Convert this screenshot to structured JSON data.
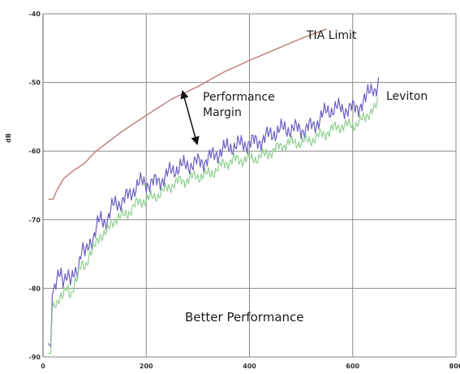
{
  "chart_data": {
    "type": "line",
    "ylabel": "dB",
    "xlim": [
      0,
      800
    ],
    "ylim": [
      -90,
      -40
    ],
    "x_ticks": [
      "0",
      "200",
      "400",
      "600",
      "800"
    ],
    "y_ticks": [
      "-40",
      "-50",
      "-60",
      "-70",
      "-80",
      "-90"
    ],
    "grid": true,
    "series": [
      {
        "name": "TIA Limit",
        "color": "#c07a78",
        "points": [
          [
            10,
            -67
          ],
          [
            20,
            -67
          ],
          [
            25,
            -66
          ],
          [
            40,
            -64
          ],
          [
            60,
            -62.8
          ],
          [
            80,
            -61.8
          ],
          [
            100,
            -60.2
          ],
          [
            150,
            -57.3
          ],
          [
            200,
            -54.8
          ],
          [
            250,
            -52.4
          ],
          [
            300,
            -50.6
          ],
          [
            350,
            -48.5
          ],
          [
            400,
            -46.8
          ],
          [
            450,
            -45.2
          ],
          [
            500,
            -43.6
          ],
          [
            550,
            -42.2
          ]
        ]
      },
      {
        "name": "Leviton",
        "color": "#6a5fc4",
        "points": [
          [
            10,
            -88
          ],
          [
            15,
            -88.5
          ],
          [
            18,
            -81
          ],
          [
            25,
            -79.5
          ],
          [
            35,
            -77.5
          ],
          [
            45,
            -78.5
          ],
          [
            55,
            -79
          ],
          [
            65,
            -77
          ],
          [
            75,
            -75
          ],
          [
            85,
            -74.5
          ],
          [
            95,
            -72.5
          ],
          [
            110,
            -70.5
          ],
          [
            125,
            -69.5
          ],
          [
            140,
            -68
          ],
          [
            160,
            -66.5
          ],
          [
            180,
            -65.5
          ],
          [
            200,
            -64.5
          ],
          [
            225,
            -64
          ],
          [
            250,
            -63
          ],
          [
            275,
            -62.5
          ],
          [
            300,
            -61.5
          ],
          [
            325,
            -60.5
          ],
          [
            350,
            -60
          ],
          [
            375,
            -59.5
          ],
          [
            400,
            -58.5
          ],
          [
            425,
            -58
          ],
          [
            450,
            -57.5
          ],
          [
            475,
            -57
          ],
          [
            500,
            -56.5
          ],
          [
            525,
            -56
          ],
          [
            550,
            -54.5
          ],
          [
            575,
            -54
          ],
          [
            600,
            -53.5
          ],
          [
            625,
            -52.5
          ],
          [
            640,
            -50.5
          ],
          [
            650,
            -51
          ]
        ]
      },
      {
        "name": "",
        "color": "#8fd08f",
        "points": [
          [
            10,
            -89.5
          ],
          [
            15,
            -89.5
          ],
          [
            18,
            -83
          ],
          [
            25,
            -82
          ],
          [
            35,
            -81
          ],
          [
            45,
            -80.5
          ],
          [
            55,
            -80.5
          ],
          [
            65,
            -78.5
          ],
          [
            75,
            -77
          ],
          [
            85,
            -76
          ],
          [
            95,
            -74.5
          ],
          [
            110,
            -72.5
          ],
          [
            125,
            -71.5
          ],
          [
            140,
            -70
          ],
          [
            160,
            -69
          ],
          [
            180,
            -68
          ],
          [
            200,
            -67
          ],
          [
            225,
            -66
          ],
          [
            250,
            -65
          ],
          [
            275,
            -64.5
          ],
          [
            300,
            -63.5
          ],
          [
            325,
            -63
          ],
          [
            350,
            -62
          ],
          [
            375,
            -61.5
          ],
          [
            400,
            -61
          ],
          [
            425,
            -60.5
          ],
          [
            450,
            -60
          ],
          [
            475,
            -59
          ],
          [
            500,
            -58.5
          ],
          [
            525,
            -58
          ],
          [
            550,
            -57.5
          ],
          [
            575,
            -56.5
          ],
          [
            600,
            -56
          ],
          [
            625,
            -55
          ],
          [
            640,
            -54
          ],
          [
            650,
            -53
          ]
        ]
      }
    ],
    "annotations": [
      {
        "id": "tia",
        "text": "TIA Limit"
      },
      {
        "id": "leviton",
        "text": "Leviton"
      },
      {
        "id": "margin_line1",
        "text": "Performance"
      },
      {
        "id": "margin_line2",
        "text": "Margin"
      },
      {
        "id": "better",
        "text": "Better Performance"
      }
    ]
  }
}
